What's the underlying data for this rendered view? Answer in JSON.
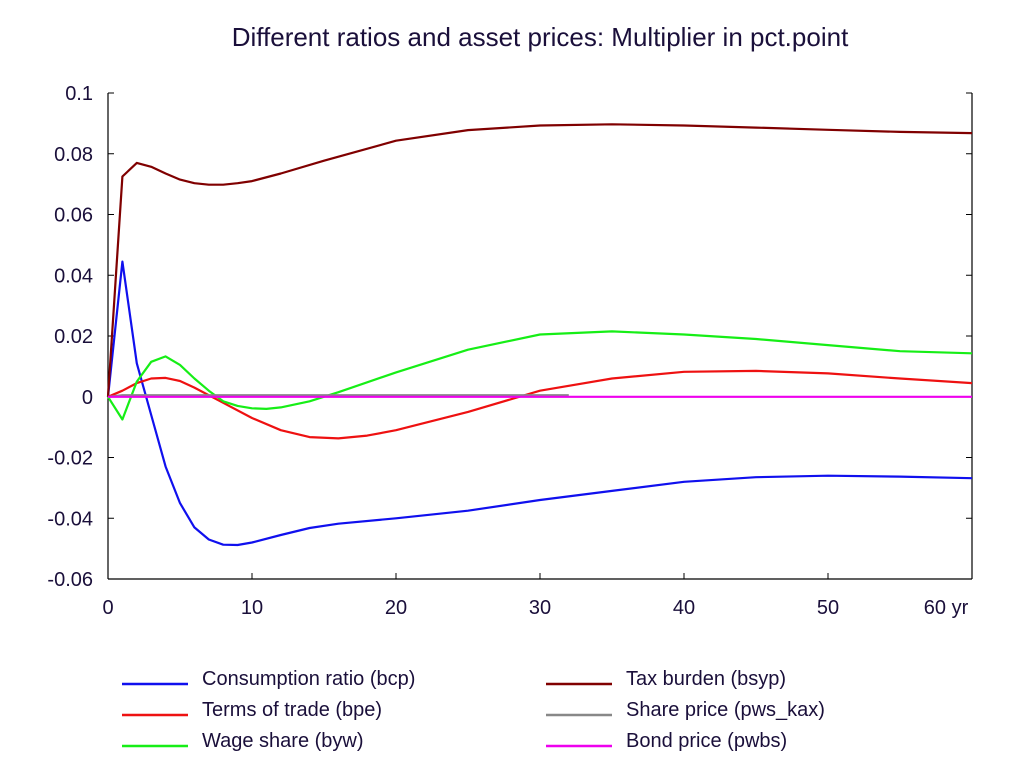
{
  "chart_data": {
    "type": "line",
    "title": "Different ratios and asset prices: Multiplier in pct.point",
    "xlabel": "",
    "ylabel": "",
    "x_tick_labels": [
      "0",
      "10",
      "20",
      "30",
      "40",
      "50",
      "60 yr"
    ],
    "x_ticks": [
      0,
      10,
      20,
      30,
      40,
      50,
      60
    ],
    "y_tick_labels": [
      "0.1",
      "0.08",
      "0.06",
      "0.04",
      "0.02",
      "0",
      "-0.02",
      "-0.04",
      "-0.06"
    ],
    "y_ticks": [
      0.1,
      0.08,
      0.06,
      0.04,
      0.02,
      0,
      -0.02,
      -0.04,
      -0.06
    ],
    "xlim": [
      0,
      60
    ],
    "ylim": [
      -0.06,
      0.1
    ],
    "grid": false,
    "legend_position": "bottom",
    "series": [
      {
        "name": "Consumption ratio (bcp)",
        "color": "#1010ee",
        "x": [
          0,
          1,
          2,
          3,
          4,
          5,
          6,
          7,
          8,
          9,
          10,
          12,
          14,
          16,
          20,
          25,
          30,
          35,
          40,
          45,
          50,
          55,
          60
        ],
        "values": [
          0,
          0.0445,
          0.011,
          -0.006,
          -0.023,
          -0.035,
          -0.043,
          -0.047,
          -0.0487,
          -0.0488,
          -0.048,
          -0.0455,
          -0.0432,
          -0.0418,
          -0.04,
          -0.0375,
          -0.034,
          -0.031,
          -0.028,
          -0.0265,
          -0.026,
          -0.0263,
          -0.0268
        ]
      },
      {
        "name": "Terms of trade (bpe)",
        "color": "#ee1111",
        "x": [
          0,
          1,
          2,
          3,
          4,
          5,
          6,
          8,
          10,
          12,
          14,
          16,
          18,
          20,
          25,
          30,
          35,
          40,
          45,
          50,
          55,
          60
        ],
        "values": [
          0,
          0.002,
          0.0045,
          0.006,
          0.0062,
          0.0052,
          0.003,
          -0.002,
          -0.007,
          -0.011,
          -0.0133,
          -0.0137,
          -0.0128,
          -0.011,
          -0.005,
          0.002,
          0.006,
          0.0082,
          0.0085,
          0.0077,
          0.006,
          0.0045
        ]
      },
      {
        "name": "Wage share (byw)",
        "color": "#16ee16",
        "x": [
          0,
          1,
          2,
          3,
          4,
          5,
          6,
          7,
          8,
          9,
          10,
          11,
          12,
          14,
          16,
          20,
          25,
          30,
          35,
          40,
          45,
          50,
          55,
          60
        ],
        "values": [
          0,
          -0.0075,
          0.005,
          0.0115,
          0.0133,
          0.0105,
          0.006,
          0.002,
          -0.0015,
          -0.003,
          -0.0038,
          -0.004,
          -0.0035,
          -0.0015,
          0.0015,
          0.008,
          0.0155,
          0.0205,
          0.0215,
          0.0205,
          0.019,
          0.017,
          0.015,
          0.0143
        ]
      },
      {
        "name": "Tax burden (bsyp)",
        "color": "#800000",
        "x": [
          0,
          1,
          2,
          3,
          4,
          5,
          6,
          7,
          8,
          9,
          10,
          12,
          15,
          20,
          25,
          30,
          35,
          40,
          45,
          50,
          55,
          60
        ],
        "values": [
          0,
          0.0725,
          0.077,
          0.0757,
          0.0735,
          0.0715,
          0.0703,
          0.0698,
          0.0698,
          0.0703,
          0.071,
          0.0735,
          0.0777,
          0.0843,
          0.0878,
          0.0893,
          0.0897,
          0.0893,
          0.0886,
          0.0879,
          0.0872,
          0.0868
        ]
      },
      {
        "name": "Share price (pws_kax)",
        "color": "#888888",
        "x": [
          0,
          1,
          32
        ],
        "values": [
          0,
          0.0005,
          0.0005
        ]
      },
      {
        "name": "Bond price (pwbs)",
        "color": "#ee00ee",
        "x": [
          0,
          60
        ],
        "values": [
          0,
          0
        ]
      }
    ]
  }
}
